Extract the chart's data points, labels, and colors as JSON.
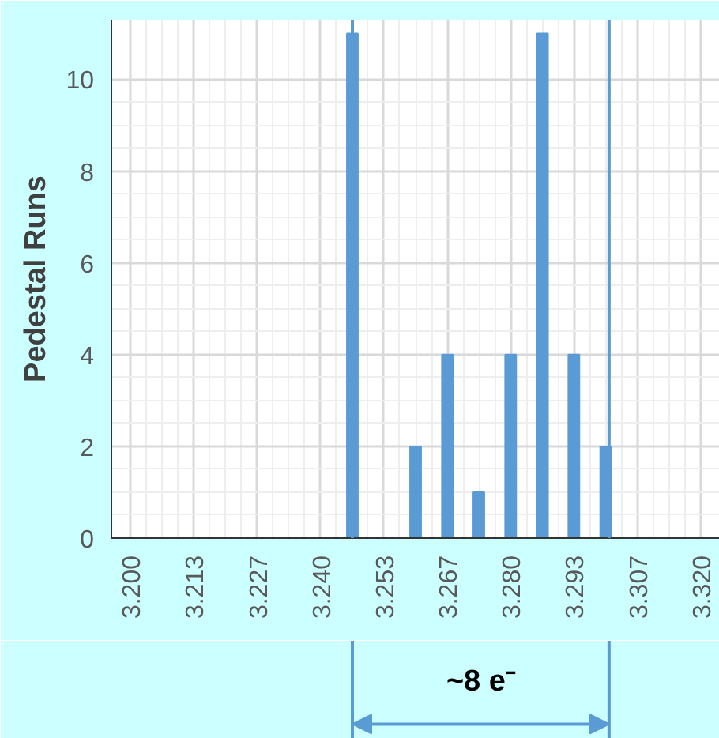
{
  "chart_data": {
    "type": "bar",
    "ylabel": "Pedestal Runs",
    "x": [
      3.2467,
      3.26,
      3.2667,
      3.2733,
      3.28,
      3.2867,
      3.2933,
      3.3
    ],
    "values": [
      11,
      2,
      4,
      1,
      4,
      11,
      4,
      2
    ],
    "color": "#5b9bd5",
    "xlim": [
      3.196,
      3.324
    ],
    "xticks": [
      {
        "value": 3.2,
        "label": "3.200"
      },
      {
        "value": 3.2133,
        "label": "3.213"
      },
      {
        "value": 3.2267,
        "label": "3.227"
      },
      {
        "value": 3.24,
        "label": "3.240"
      },
      {
        "value": 3.2533,
        "label": "3.253"
      },
      {
        "value": 3.2667,
        "label": "3.267"
      },
      {
        "value": 3.28,
        "label": "3.280"
      },
      {
        "value": 3.2933,
        "label": "3.293"
      },
      {
        "value": 3.3067,
        "label": "3.307"
      },
      {
        "value": 3.32,
        "label": "3.320"
      }
    ],
    "ylim": [
      0,
      11.3
    ],
    "yticks": [
      0,
      2,
      4,
      6,
      8,
      10
    ],
    "grid": true,
    "ref_lines": [
      {
        "axis": "x",
        "value": 3.2467,
        "label": null,
        "color": "#5b9bd5"
      },
      {
        "axis": "x",
        "value": 3.3007,
        "label": null,
        "color": "#5b9bd5"
      }
    ],
    "annotations": [
      "~8 e⁻"
    ]
  }
}
